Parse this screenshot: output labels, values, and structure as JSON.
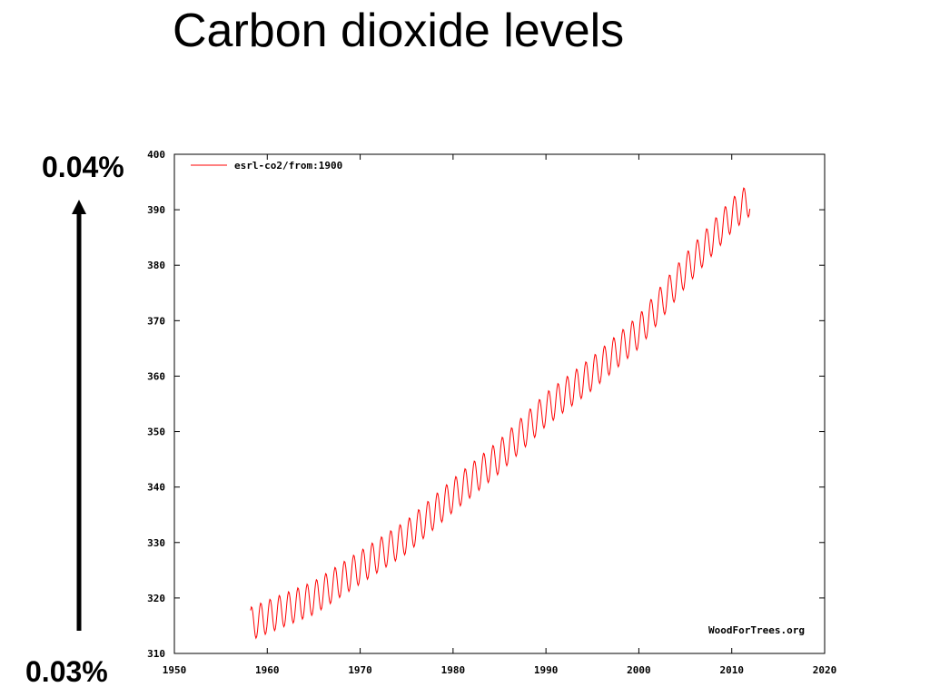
{
  "slide": {
    "title": "Carbon dioxide levels",
    "pct_top": "0.04%",
    "pct_bottom": "0.03%"
  },
  "chart_data": {
    "type": "line",
    "title": "",
    "xlabel": "",
    "ylabel": "",
    "xlim": [
      1950,
      2020
    ],
    "ylim": [
      310,
      400
    ],
    "x_ticks": [
      1950,
      1960,
      1970,
      1980,
      1990,
      2000,
      2010,
      2020
    ],
    "y_ticks": [
      310,
      320,
      330,
      340,
      350,
      360,
      370,
      380,
      390,
      400
    ],
    "grid": false,
    "legend_position": "top-left",
    "watermark": "WoodForTrees.org",
    "line_color": "#ff0000",
    "series": [
      {
        "name": "esrl-co2/from:1900",
        "x_start": 1958.2,
        "x_end": 2012.0,
        "trend": [
          [
            1958,
            315.2
          ],
          [
            1965,
            320.0
          ],
          [
            1970,
            325.5
          ],
          [
            1975,
            331.0
          ],
          [
            1980,
            338.5
          ],
          [
            1985,
            345.5
          ],
          [
            1990,
            354.0
          ],
          [
            1995,
            360.5
          ],
          [
            2000,
            368.0
          ],
          [
            2005,
            379.0
          ],
          [
            2010,
            389.0
          ],
          [
            2012,
            392.0
          ]
        ],
        "seasonal_amplitude": 3.0
      }
    ]
  }
}
